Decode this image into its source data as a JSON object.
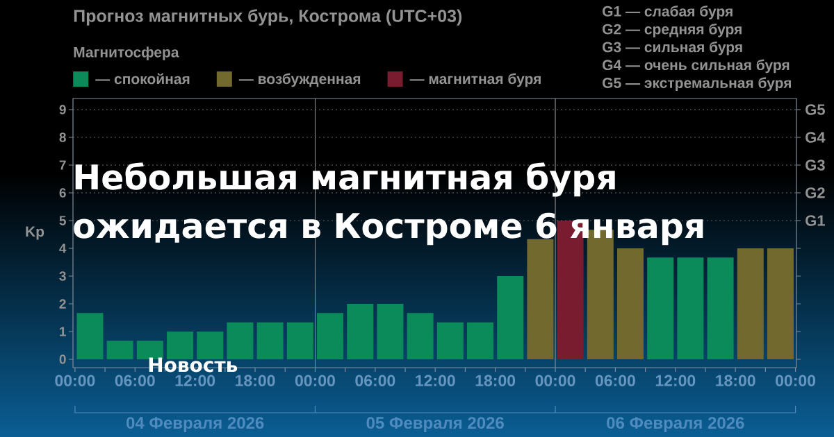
{
  "chart_data": {
    "type": "bar",
    "title": "Прогноз магнитных бурь, Кострома (UTC+03)",
    "ylabel": "Kp",
    "legend_title": "Магнитосфера",
    "x": [
      "2026-02-04T01:30",
      "2026-02-04T04:30",
      "2026-02-04T07:30",
      "2026-02-04T10:30",
      "2026-02-04T13:30",
      "2026-02-04T16:30",
      "2026-02-04T19:30",
      "2026-02-04T22:30",
      "2026-02-05T01:30",
      "2026-02-05T04:30",
      "2026-02-05T07:30",
      "2026-02-05T10:30",
      "2026-02-05T13:30",
      "2026-02-05T16:30",
      "2026-02-05T19:30",
      "2026-02-05T22:30",
      "2026-02-06T01:30",
      "2026-02-06T04:30",
      "2026-02-06T07:30",
      "2026-02-06T10:30",
      "2026-02-06T13:30",
      "2026-02-06T16:30",
      "2026-02-06T19:30",
      "2026-02-06T22:30"
    ],
    "series": [
      {
        "name": "— спокойная",
        "color": "#0b8a5a",
        "values": [
          1.67,
          0.67,
          0.67,
          1.0,
          1.0,
          1.33,
          1.33,
          1.33,
          1.67,
          2.0,
          2.0,
          1.67,
          1.33,
          1.33,
          3.0,
          null,
          null,
          null,
          null,
          3.67,
          3.67,
          3.67,
          null,
          null
        ]
      },
      {
        "name": "— возбужденная",
        "color": "#72692e",
        "values": [
          null,
          null,
          null,
          null,
          null,
          null,
          null,
          null,
          null,
          null,
          null,
          null,
          null,
          null,
          null,
          4.33,
          null,
          4.67,
          4.0,
          null,
          null,
          null,
          4.0,
          4.0
        ]
      },
      {
        "name": "— магнитная буря",
        "color": "#7a1c30",
        "values": [
          null,
          null,
          null,
          null,
          null,
          null,
          null,
          null,
          null,
          null,
          null,
          null,
          null,
          null,
          null,
          null,
          5.0,
          null,
          null,
          null,
          null,
          null,
          null,
          null
        ]
      }
    ],
    "xlim": [
      "2026-02-03T23:48",
      "2026-02-07T00:06"
    ],
    "xticks": [
      {
        "value": "2026-02-04T00:00",
        "label": "00:00"
      },
      {
        "value": "2026-02-04T03:00",
        "label": null
      },
      {
        "value": "2026-02-04T06:00",
        "label": "06:00"
      },
      {
        "value": "2026-02-04T09:00",
        "label": null
      },
      {
        "value": "2026-02-04T12:00",
        "label": "12:00"
      },
      {
        "value": "2026-02-04T15:00",
        "label": null
      },
      {
        "value": "2026-02-04T18:00",
        "label": "18:00"
      },
      {
        "value": "2026-02-04T21:00",
        "label": null
      },
      {
        "value": "2026-02-05T00:00",
        "label": "00:00"
      },
      {
        "value": "2026-02-05T03:00",
        "label": null
      },
      {
        "value": "2026-02-05T06:00",
        "label": "06:00"
      },
      {
        "value": "2026-02-05T09:00",
        "label": null
      },
      {
        "value": "2026-02-05T12:00",
        "label": "12:00"
      },
      {
        "value": "2026-02-05T15:00",
        "label": null
      },
      {
        "value": "2026-02-05T18:00",
        "label": "18:00"
      },
      {
        "value": "2026-02-05T21:00",
        "label": null
      },
      {
        "value": "2026-02-06T00:00",
        "label": "00:00"
      },
      {
        "value": "2026-02-06T03:00",
        "label": null
      },
      {
        "value": "2026-02-06T06:00",
        "label": "06:00"
      },
      {
        "value": "2026-02-06T09:00",
        "label": null
      },
      {
        "value": "2026-02-06T12:00",
        "label": "12:00"
      },
      {
        "value": "2026-02-06T15:00",
        "label": null
      },
      {
        "value": "2026-02-06T18:00",
        "label": "18:00"
      },
      {
        "value": "2026-02-06T21:00",
        "label": null
      },
      {
        "value": "2026-02-07T00:00",
        "label": "00:00"
      }
    ],
    "ylim": [
      -0.3,
      9.4
    ],
    "yticks": [
      0,
      1,
      2,
      3,
      4,
      5,
      6,
      7,
      8,
      9
    ],
    "ref_lines": [
      {
        "axis": "x",
        "value": "2026-02-05T00:00",
        "color": "#8c8c8c"
      },
      {
        "axis": "x",
        "value": "2026-02-06T00:00",
        "color": "#8c8c8c"
      },
      {
        "axis": "y",
        "value": 5,
        "label": "G1",
        "color": "#6e6e6e",
        "line_style": "dotted"
      },
      {
        "axis": "y",
        "value": 6,
        "label": "G2",
        "color": "#6e6e6e",
        "line_style": "dotted"
      },
      {
        "axis": "y",
        "value": 7,
        "label": "G3",
        "color": "#6e6e6e",
        "line_style": "dotted"
      },
      {
        "axis": "y",
        "value": 8,
        "label": "G4",
        "color": "#6e6e6e",
        "line_style": "dotted"
      },
      {
        "axis": "y",
        "value": 9,
        "label": "G5",
        "color": "#6e6e6e",
        "line_style": "dotted"
      }
    ],
    "legend": "top",
    "annotations": [
      "Небольшая магнитная буря ожидается в Костроме 6 января",
      "Новость",
      "G1 — слабая буря",
      "G2 — средняя буря",
      "G3 — сильная буря",
      "G4 — очень сильная буря",
      "G5 — экстремальная буря",
      "04 Февраля 2026",
      "05 Февраля 2026",
      "06 Февраля 2026"
    ]
  }
}
